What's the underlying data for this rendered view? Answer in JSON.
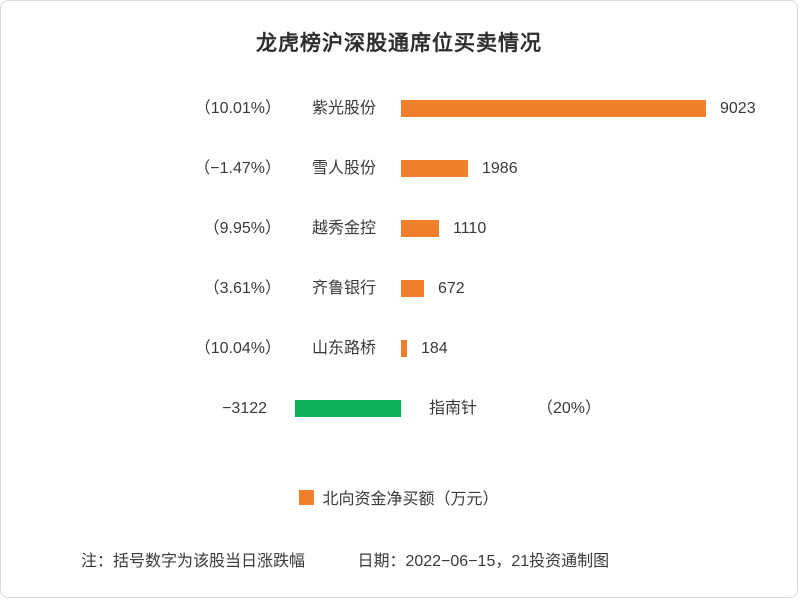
{
  "chart_data": {
    "type": "bar",
    "orientation": "horizontal",
    "title": "龙虎榜沪深股通席位买卖情况",
    "legend_label": "北向资金净买额（万元）",
    "bars": [
      {
        "pct": "（10.01%）",
        "name": "紫光股份",
        "value": 9023
      },
      {
        "pct": "（−1.47%）",
        "name": "雪人股份",
        "value": 1986
      },
      {
        "pct": "（9.95%）",
        "name": "越秀金控",
        "value": 1110
      },
      {
        "pct": "（3.61%）",
        "name": "齐鲁银行",
        "value": 672
      },
      {
        "pct": "（10.04%）",
        "name": "山东路桥",
        "value": 184
      },
      {
        "pct": "（20%）",
        "name": "指南针",
        "value": -3122
      }
    ],
    "xlim": [
      -3122,
      9023
    ],
    "colors": {
      "positive": "#F0802B",
      "negative": "#0FAE5B"
    },
    "note": "注：括号数字为该股当日涨跌幅",
    "date_note": "日期：2022−06−15，21投资通制图"
  }
}
